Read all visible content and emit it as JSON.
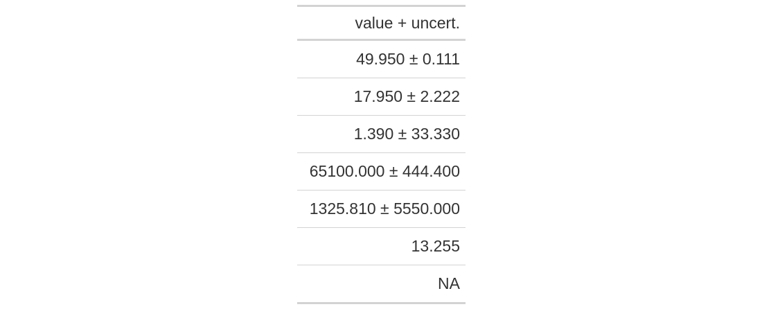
{
  "table": {
    "header": "value + uncert.",
    "rows": [
      "49.950 ± 0.111",
      "17.950 ± 2.222",
      "1.390 ± 33.330",
      "65100.000 ± 444.400",
      "1325.810 ± 5550.000",
      "13.255",
      "NA"
    ]
  }
}
